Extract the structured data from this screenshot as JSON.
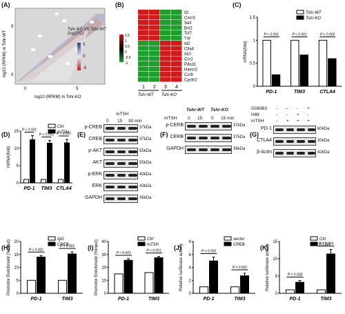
{
  "panels": {
    "A": {
      "label": "(A)",
      "xlabel": "log10 (RPKM) in Tshr-KO",
      "ylabel": "log10 (RPKM) in Tshr-WT",
      "legend_title": "Tshr-KO VS Tshr-WT (log2FC)",
      "ticks_x": [
        "0",
        "5"
      ],
      "ticks_y": [
        "0",
        "5"
      ],
      "cbar_ticks": [
        "5",
        "0",
        "-5"
      ]
    },
    "B": {
      "label": "(B)",
      "genes": [
        "Il2",
        "Cxcr3",
        "Sell",
        "Bcl2",
        "Tcf7",
        "Tnf",
        "Id2",
        "Ctla4",
        "Il10",
        "Ccr2",
        "Pdcd1",
        "Havcr2",
        "Ccr8",
        "Cysltr2"
      ],
      "cols": [
        "1",
        "2",
        "3",
        "4"
      ],
      "groups": [
        "Tshr-WT",
        "Tshr-KO"
      ],
      "scale": [
        "1.5",
        "1",
        "0.5",
        "0",
        "-0.5",
        "-1"
      ]
    },
    "C": {
      "label": "(C)",
      "ylabel": "mRNA(fold)",
      "legend": [
        "Tshr-WT",
        "Tshr-KO"
      ],
      "pvals": [
        "P < 0.001",
        "P < 0.001",
        "P = 0.002"
      ]
    },
    "D": {
      "label": "(D)",
      "ylabel": "mRNA(fold)",
      "legend": [
        "Ctrl",
        "mTSH"
      ],
      "pvals": [
        "P < 0.001",
        "P < 0.001",
        "P < 0.001"
      ]
    },
    "E": {
      "label": "(E)",
      "treat": "mTSH",
      "times": [
        "0",
        "15",
        "30 min"
      ],
      "rows": [
        {
          "name": "p-CREB",
          "kda": "37kDa"
        },
        {
          "name": "CREB",
          "kda": "37kDa"
        },
        {
          "name": "p-AKT",
          "kda": "55kDa"
        },
        {
          "name": "AKT",
          "kda": "55kDa"
        },
        {
          "name": "p-ERK",
          "kda": "43kDa"
        },
        {
          "name": "ERK",
          "kda": "43kDa"
        },
        {
          "name": "GAPDH",
          "kda": "36kDa"
        }
      ]
    },
    "F": {
      "label": "(F)",
      "groups": [
        "Tshr-WT",
        "Tshr-KO"
      ],
      "treat": "mTSH",
      "times": [
        "0",
        "15",
        "0",
        "15 min"
      ],
      "rows": [
        {
          "name": "p-CERB",
          "kda": "37kDa"
        },
        {
          "name": "CERB",
          "kda": "37kDa"
        },
        {
          "name": "GAPDH",
          "kda": "36kDa"
        }
      ]
    },
    "G": {
      "label": "(G)",
      "conds": [
        {
          "name": "G06983",
          "vals": [
            "-",
            "-",
            "-",
            "+"
          ]
        },
        {
          "name": "H89",
          "vals": [
            "-",
            "-",
            "+",
            "-"
          ]
        },
        {
          "name": "mTSH",
          "vals": [
            "-",
            "+",
            "+",
            "+"
          ]
        }
      ],
      "rows": [
        {
          "name": "PD-1",
          "kda": "60kDa"
        },
        {
          "name": "CTLA4",
          "kda": "30kDa"
        },
        {
          "name": "β-Actin",
          "kda": "42kDa"
        }
      ]
    },
    "H": {
      "label": "(H)",
      "ylabel": "Promotor Enrichment (%Input)",
      "legend": [
        "IgG",
        "CREB"
      ],
      "pvals": [
        "P < 0.001",
        "P < 0.001"
      ]
    },
    "I": {
      "label": "(I)",
      "ylabel": "Promotor Enrichment (%Input)",
      "legend": [
        "Ctrl",
        "mTSH"
      ],
      "pvals": [
        "P < 0.001",
        "P < 0.001"
      ]
    },
    "J": {
      "label": "(J)",
      "ylabel": "Relative luciferase activity",
      "legend": [
        "vector",
        "CREB"
      ],
      "pvals": [
        "P = 0.020",
        "P = 0.021"
      ]
    },
    "K": {
      "label": "(K)",
      "ylabel": "Relative luciferase activity",
      "legend": [
        "Ctrl",
        "hTSH"
      ],
      "pvals": [
        "P = 0.028",
        "P = 0.024"
      ]
    }
  },
  "chart_data": [
    {
      "id": "C",
      "type": "bar",
      "categories": [
        "PD-1",
        "TIM3",
        "CTLA4"
      ],
      "ylim": [
        0,
        1.5
      ],
      "yticks": [
        0,
        0.5,
        1.0,
        1.5
      ],
      "series": [
        {
          "name": "Tshr-WT",
          "values": [
            1.0,
            1.0,
            1.0
          ]
        },
        {
          "name": "Tshr-KO",
          "values": [
            0.25,
            0.68,
            0.6
          ]
        }
      ]
    },
    {
      "id": "D",
      "type": "bar",
      "categories": [
        "PD-1",
        "TIM3",
        "CTLA4"
      ],
      "ylim": [
        0,
        15
      ],
      "yticks": [
        0,
        5,
        10,
        15
      ],
      "series": [
        {
          "name": "Ctrl",
          "values": [
            1,
            1,
            1
          ]
        },
        {
          "name": "mTSH",
          "values": [
            12.5,
            11.5,
            11.6
          ]
        }
      ],
      "errors": [
        1.2,
        0.8,
        1.0
      ]
    },
    {
      "id": "H",
      "type": "bar",
      "categories": [
        "PD-1",
        "TIM3"
      ],
      "ylim": [
        0,
        20
      ],
      "yticks": [
        0,
        5,
        10,
        15,
        20
      ],
      "series": [
        {
          "name": "IgG",
          "values": [
            5,
            5
          ]
        },
        {
          "name": "CREB",
          "values": [
            14,
            15.2
          ]
        }
      ],
      "errors": [
        0.6,
        0.8
      ]
    },
    {
      "id": "I",
      "type": "bar",
      "categories": [
        "PD-1",
        "TIM3"
      ],
      "ylim": [
        0,
        40
      ],
      "yticks": [
        0,
        10,
        20,
        30,
        40
      ],
      "series": [
        {
          "name": "Ctrl",
          "values": [
            15,
            16
          ]
        },
        {
          "name": "mTSH",
          "values": [
            25.5,
            27.5
          ]
        }
      ],
      "errors": [
        1.2,
        1.0
      ]
    },
    {
      "id": "J",
      "type": "bar",
      "categories": [
        "PD-1",
        "TIM3"
      ],
      "ylim": [
        0,
        8
      ],
      "yticks": [
        0,
        2,
        4,
        6,
        8
      ],
      "series": [
        {
          "name": "vector",
          "values": [
            1,
            1
          ]
        },
        {
          "name": "CREB",
          "values": [
            5.0,
            2.7
          ]
        }
      ],
      "errors": [
        0.6,
        0.4
      ]
    },
    {
      "id": "K",
      "type": "bar",
      "categories": [
        "PD-1",
        "TIM3"
      ],
      "ylim": [
        0,
        15
      ],
      "yticks": [
        0,
        5,
        10,
        15
      ],
      "series": [
        {
          "name": "Ctrl",
          "values": [
            1,
            1
          ]
        },
        {
          "name": "hTSH",
          "values": [
            3.2,
            11.4
          ]
        }
      ],
      "errors": [
        0.5,
        1.3
      ]
    }
  ]
}
